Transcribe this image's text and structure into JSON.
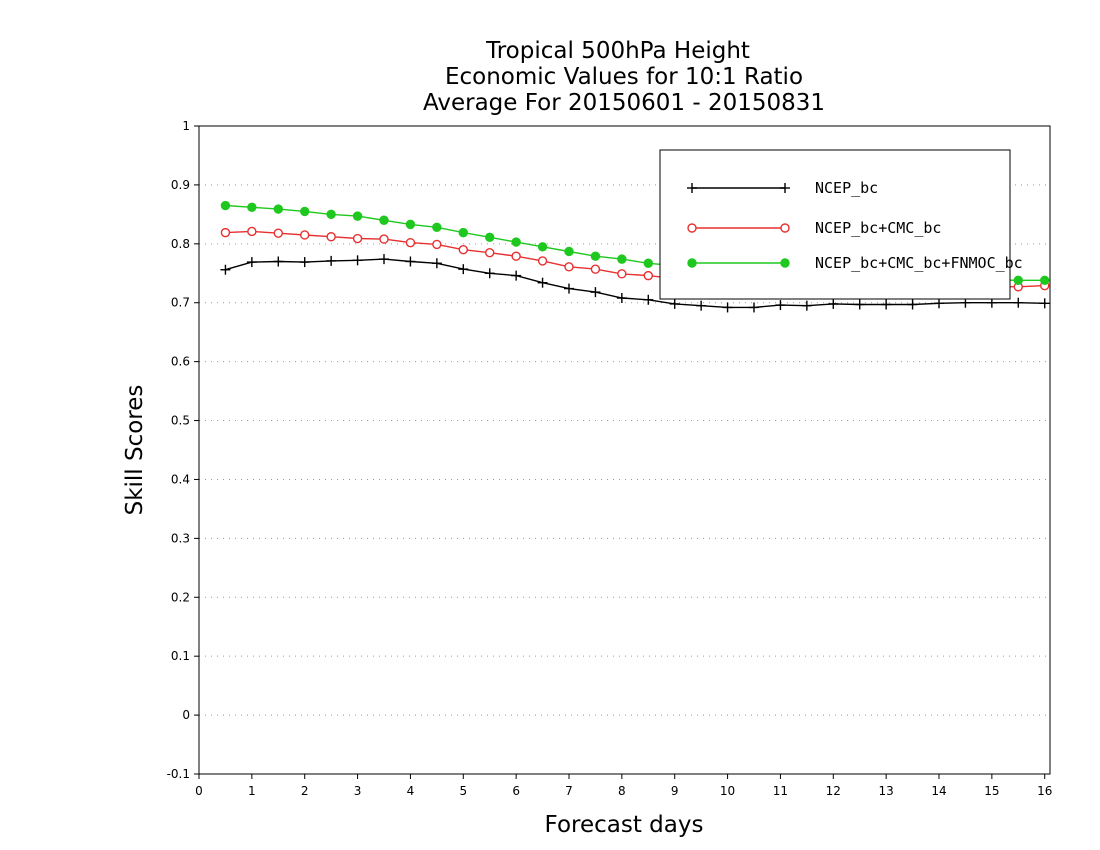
{
  "chart_data": {
    "type": "line",
    "title": [
      "Tropical 500hPa Height",
      "Economic Values for 10:1 Ratio",
      "Average For 20150601 - 20150831"
    ],
    "xlabel": "Forecast days",
    "ylabel": "Skill Scores",
    "xlim": [
      0,
      16.1
    ],
    "ylim": [
      -0.1,
      1
    ],
    "xticks": [
      "0",
      "1",
      "2",
      "3",
      "4",
      "5",
      "6",
      "7",
      "8",
      "9",
      "10",
      "11",
      "12",
      "13",
      "14",
      "15",
      "16"
    ],
    "yticks": [
      "-0.1",
      "0",
      "0.1",
      "0.2",
      "0.3",
      "0.4",
      "0.5",
      "0.6",
      "0.7",
      "0.8",
      "0.9",
      "1"
    ],
    "grid": "horizontal dotted",
    "legend_position": "top-right",
    "x": [
      0.5,
      1,
      1.5,
      2,
      2.5,
      3,
      3.5,
      4,
      4.5,
      5,
      5.5,
      6,
      6.5,
      7,
      7.5,
      8,
      8.5,
      9,
      9.5,
      10,
      10.5,
      11,
      11.5,
      12,
      12.5,
      13,
      13.5,
      14,
      14.5,
      15,
      15.5,
      16
    ],
    "series": [
      {
        "name": "NCEP_bc",
        "color": "#000000",
        "marker": "plus",
        "values": [
          0.756,
          0.769,
          0.77,
          0.769,
          0.771,
          0.772,
          0.774,
          0.77,
          0.767,
          0.757,
          0.75,
          0.746,
          0.734,
          0.724,
          0.718,
          0.708,
          0.705,
          0.698,
          0.695,
          0.692,
          0.692,
          0.696,
          0.695,
          0.698,
          0.697,
          0.697,
          0.697,
          0.699,
          0.7,
          0.7,
          0.7,
          0.699
        ]
      },
      {
        "name": "NCEP_bc+CMC_bc",
        "color": "#e83030",
        "marker": "open-circle",
        "values": [
          0.819,
          0.821,
          0.818,
          0.815,
          0.812,
          0.809,
          0.808,
          0.802,
          0.799,
          0.79,
          0.785,
          0.779,
          0.771,
          0.761,
          0.757,
          0.749,
          0.746,
          0.741,
          0.739,
          0.737,
          0.736,
          0.735,
          0.734,
          0.733,
          0.732,
          0.731,
          0.73,
          0.729,
          0.729,
          0.728,
          0.727,
          0.729
        ]
      },
      {
        "name": "NCEP_bc+CMC_bc+FNMOC_bc",
        "color": "#1ec81e",
        "marker": "filled-circle",
        "values": [
          0.865,
          0.862,
          0.859,
          0.855,
          0.85,
          0.847,
          0.84,
          0.833,
          0.828,
          0.819,
          0.811,
          0.803,
          0.795,
          0.787,
          0.779,
          0.774,
          0.767,
          0.763,
          0.759,
          0.756,
          0.754,
          0.751,
          0.749,
          0.747,
          0.745,
          0.743,
          0.742,
          0.741,
          0.74,
          0.739,
          0.738,
          0.738
        ]
      }
    ]
  }
}
